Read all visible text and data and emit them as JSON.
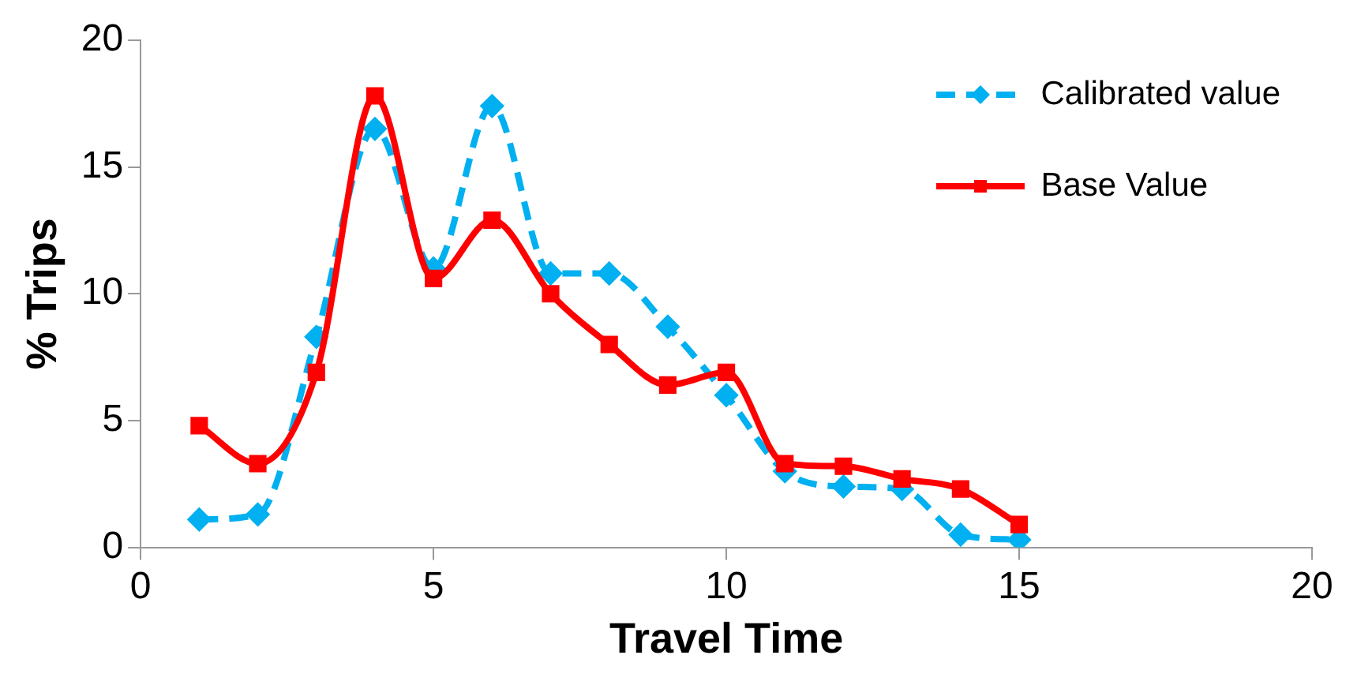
{
  "chart_data": {
    "type": "line",
    "xlabel": "Travel Time",
    "ylabel": "% Trips",
    "x": [
      1,
      2,
      3,
      4,
      5,
      6,
      7,
      8,
      9,
      10,
      11,
      12,
      13,
      14,
      15
    ],
    "series": [
      {
        "name": "Calibrated value",
        "color": "#00b0f0",
        "line_style": "dashed",
        "marker": "diamond",
        "values": [
          1.1,
          1.3,
          8.3,
          16.5,
          11,
          17.4,
          10.8,
          10.8,
          8.7,
          6.0,
          3.0,
          2.4,
          2.3,
          0.5,
          0.3
        ]
      },
      {
        "name": "Base Value",
        "color": "#ff0000",
        "line_style": "solid",
        "marker": "square",
        "values": [
          4.8,
          3.3,
          6.9,
          17.8,
          10.6,
          12.9,
          10.0,
          8.0,
          6.4,
          6.9,
          3.3,
          3.2,
          2.7,
          2.3,
          0.9
        ]
      }
    ],
    "xlim": [
      0,
      20
    ],
    "xticks": [
      0,
      5,
      10,
      15,
      20
    ],
    "ylim": [
      0,
      20
    ],
    "yticks": [
      0,
      5,
      10,
      15,
      20
    ],
    "grid": false,
    "legend": "top right"
  }
}
